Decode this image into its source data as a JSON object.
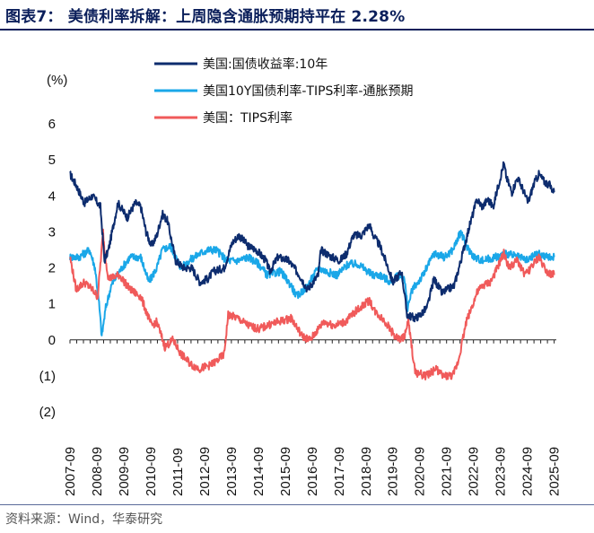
{
  "figure": {
    "title": "图表7：  美债利率拆解：上周隐含通胀预期持平在 2.28%",
    "source": "资料来源：Wind，华泰研究"
  },
  "chart_data": {
    "type": "line",
    "ylabel": "(%)",
    "ylim": [
      -2,
      6
    ],
    "yticks": [
      -2,
      -1,
      0,
      1,
      2,
      3,
      4,
      5,
      6
    ],
    "ytick_labels": [
      "(2)",
      "(1)",
      "0",
      "1",
      "2",
      "3",
      "4",
      "5",
      "6"
    ],
    "xlim": [
      2007.67,
      2025.75
    ],
    "xticks": [
      "2007-09",
      "2008-09",
      "2009-09",
      "2010-09",
      "2011-09",
      "2012-09",
      "2013-09",
      "2014-09",
      "2015-09",
      "2016-09",
      "2017-09",
      "2018-09",
      "2019-09",
      "2020-09",
      "2021-09",
      "2022-09",
      "2023-09",
      "2024-09",
      "2025-09"
    ],
    "legend_position": "top-center",
    "grid": false,
    "series": [
      {
        "name": "美国:国债收益率:10年",
        "color": "#0d2c6e",
        "x": [
          2007.67,
          2007.9,
          2008.2,
          2008.5,
          2008.8,
          2008.95,
          2009.1,
          2009.45,
          2009.8,
          2010.1,
          2010.3,
          2010.5,
          2010.7,
          2010.9,
          2011.1,
          2011.3,
          2011.6,
          2011.9,
          2012.2,
          2012.5,
          2012.8,
          2013.0,
          2013.4,
          2013.7,
          2013.95,
          2014.3,
          2014.6,
          2014.95,
          2015.1,
          2015.4,
          2015.8,
          2016.2,
          2016.5,
          2016.9,
          2017.0,
          2017.4,
          2017.7,
          2017.95,
          2018.2,
          2018.5,
          2018.8,
          2018.95,
          2019.2,
          2019.5,
          2019.67,
          2019.9,
          2020.0,
          2020.2,
          2020.5,
          2020.7,
          2020.95,
          2021.2,
          2021.5,
          2021.7,
          2021.95,
          2022.2,
          2022.5,
          2022.8,
          2023.0,
          2023.2,
          2023.4,
          2023.6,
          2023.8,
          2023.9,
          2024.1,
          2024.3,
          2024.5,
          2024.7,
          2024.9,
          2025.1,
          2025.3,
          2025.5,
          2025.67
        ],
        "y": [
          4.6,
          4.3,
          3.8,
          4.0,
          3.7,
          2.2,
          2.5,
          3.8,
          3.4,
          3.8,
          3.7,
          3.0,
          2.6,
          2.9,
          3.5,
          3.3,
          2.2,
          2.0,
          2.0,
          1.6,
          1.7,
          1.9,
          2.0,
          2.7,
          2.9,
          2.6,
          2.5,
          2.2,
          1.9,
          2.3,
          2.2,
          1.8,
          1.4,
          1.8,
          2.5,
          2.3,
          2.2,
          2.4,
          2.9,
          2.9,
          3.2,
          2.9,
          2.6,
          2.0,
          1.6,
          1.8,
          1.9,
          0.7,
          0.6,
          0.7,
          0.9,
          1.7,
          1.3,
          1.4,
          1.5,
          2.2,
          3.1,
          3.9,
          3.7,
          3.9,
          3.7,
          4.3,
          4.9,
          4.5,
          4.1,
          4.5,
          4.2,
          3.8,
          4.3,
          4.6,
          4.4,
          4.3,
          4.1
        ]
      },
      {
        "name": "美国10Y国债利率-TIPS利率-通胀预期",
        "color": "#1aa7e8",
        "x": [
          2007.67,
          2008.0,
          2008.4,
          2008.6,
          2008.75,
          2008.85,
          2009.0,
          2009.2,
          2009.5,
          2009.9,
          2010.3,
          2010.6,
          2010.9,
          2011.1,
          2011.4,
          2011.8,
          2012.1,
          2012.5,
          2012.8,
          2013.1,
          2013.5,
          2013.9,
          2014.3,
          2014.7,
          2015.0,
          2015.5,
          2015.9,
          2016.1,
          2016.5,
          2016.9,
          2017.2,
          2017.6,
          2018.0,
          2018.4,
          2018.9,
          2019.2,
          2019.6,
          2019.9,
          2020.1,
          2020.22,
          2020.4,
          2020.8,
          2021.2,
          2021.6,
          2021.9,
          2022.2,
          2022.4,
          2022.7,
          2023.0,
          2023.5,
          2023.9,
          2024.3,
          2024.7,
          2025.0,
          2025.4,
          2025.67
        ],
        "y": [
          2.3,
          2.3,
          2.5,
          2.0,
          1.0,
          0.1,
          0.9,
          1.5,
          1.9,
          2.3,
          2.3,
          1.6,
          2.0,
          2.5,
          2.6,
          2.0,
          2.2,
          2.4,
          2.5,
          2.5,
          2.2,
          2.2,
          2.3,
          2.1,
          1.8,
          1.9,
          1.5,
          1.2,
          1.5,
          2.0,
          1.9,
          1.8,
          2.1,
          2.1,
          1.8,
          1.8,
          1.6,
          1.8,
          1.7,
          0.9,
          1.4,
          1.8,
          2.4,
          2.3,
          2.5,
          3.0,
          2.6,
          2.3,
          2.2,
          2.3,
          2.4,
          2.3,
          2.2,
          2.4,
          2.3,
          2.3
        ]
      },
      {
        "name": "美国：TIPS利率",
        "color": "#f05a5a",
        "x": [
          2007.67,
          2007.9,
          2008.2,
          2008.5,
          2008.7,
          2008.9,
          2008.95,
          2009.1,
          2009.5,
          2009.9,
          2010.3,
          2010.7,
          2010.9,
          2011.2,
          2011.5,
          2011.8,
          2012.2,
          2012.5,
          2012.9,
          2013.1,
          2013.4,
          2013.55,
          2013.9,
          2014.3,
          2014.7,
          2015.0,
          2015.4,
          2015.9,
          2016.3,
          2016.6,
          2016.9,
          2017.1,
          2017.5,
          2017.9,
          2018.3,
          2018.8,
          2019.0,
          2019.4,
          2019.75,
          2019.95,
          2020.1,
          2020.25,
          2020.5,
          2020.9,
          2021.3,
          2021.5,
          2021.9,
          2022.1,
          2022.4,
          2022.8,
          2023.0,
          2023.3,
          2023.5,
          2023.8,
          2024.0,
          2024.3,
          2024.6,
          2024.9,
          2025.1,
          2025.4,
          2025.67
        ],
        "y": [
          2.3,
          1.4,
          1.6,
          1.4,
          1.2,
          3.0,
          2.5,
          1.7,
          1.8,
          1.4,
          1.2,
          0.4,
          0.5,
          -0.2,
          0.0,
          -0.4,
          -0.7,
          -0.8,
          -0.7,
          -0.6,
          -0.4,
          0.7,
          0.6,
          0.4,
          0.3,
          0.4,
          0.5,
          0.6,
          0.1,
          0.0,
          0.3,
          0.5,
          0.4,
          0.5,
          0.8,
          1.1,
          0.8,
          0.5,
          0.1,
          0.0,
          0.1,
          0.5,
          -0.9,
          -1.0,
          -0.8,
          -1.0,
          -1.0,
          -0.6,
          0.5,
          1.3,
          1.5,
          1.6,
          1.9,
          2.4,
          2.0,
          2.2,
          1.8,
          2.1,
          2.3,
          1.9,
          1.8
        ]
      }
    ]
  }
}
